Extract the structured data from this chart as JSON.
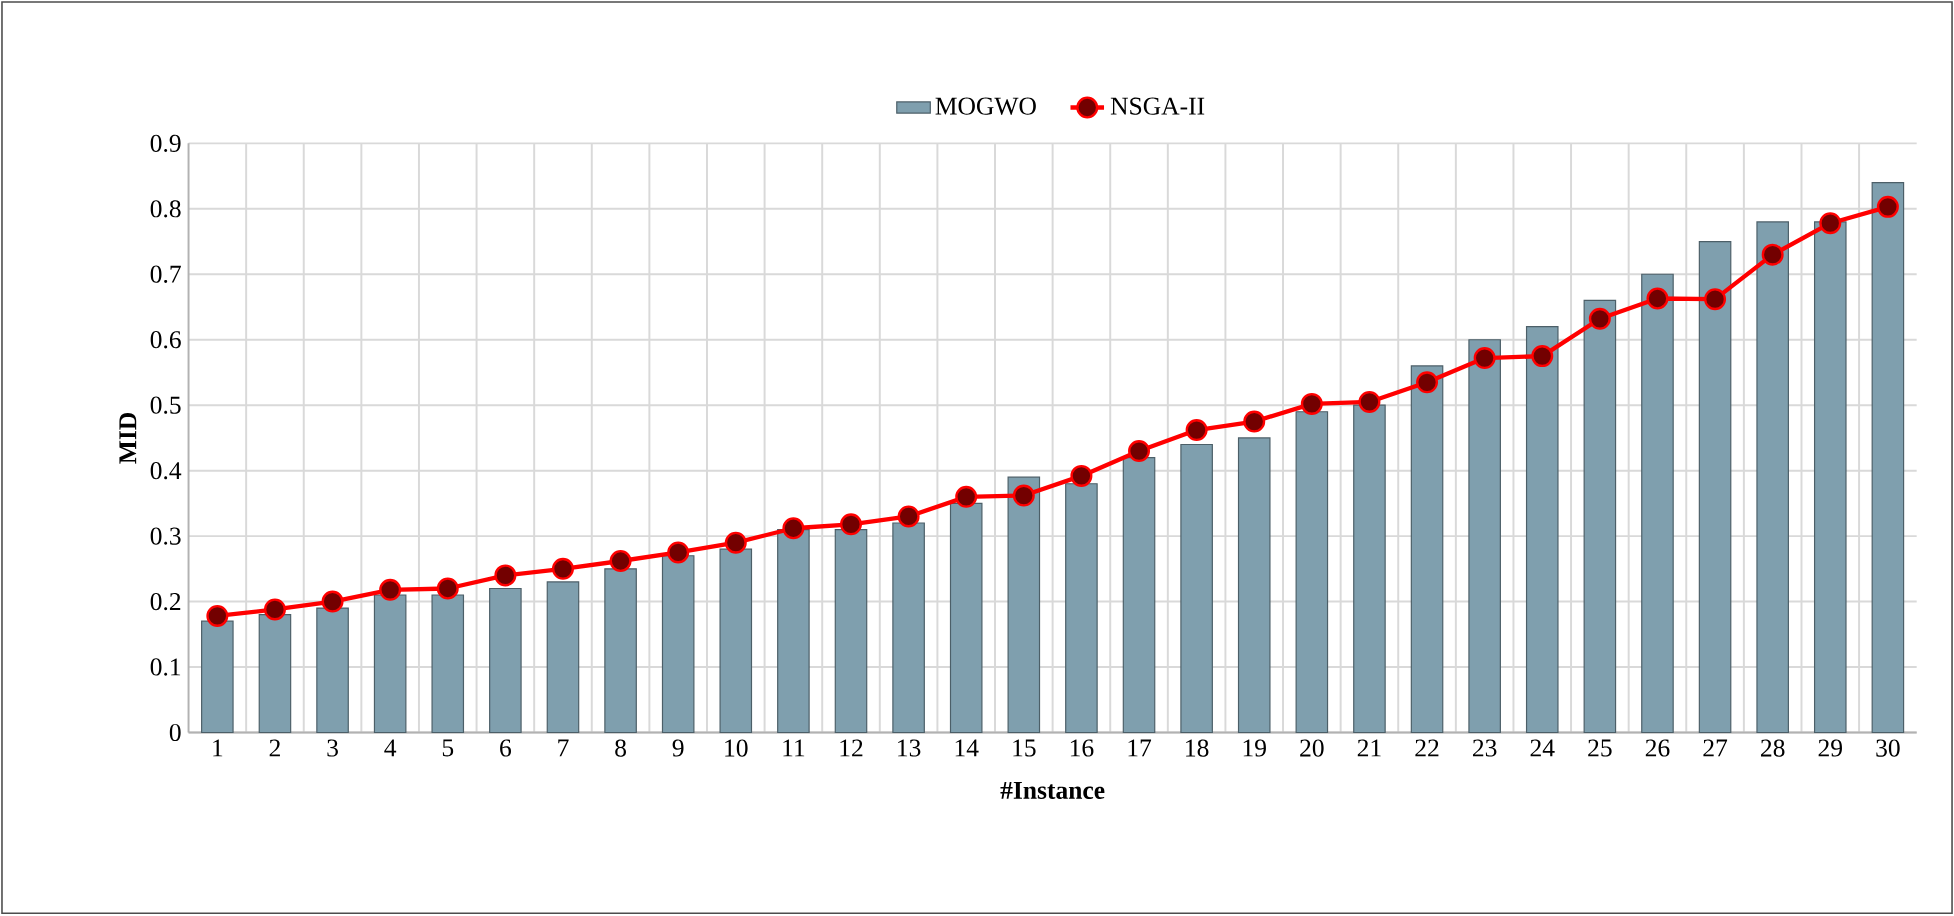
{
  "chart_data": {
    "type": "bar",
    "xlabel": "#Instance",
    "ylabel": "MID",
    "categories": [
      "1",
      "2",
      "3",
      "4",
      "5",
      "6",
      "7",
      "8",
      "9",
      "10",
      "11",
      "12",
      "13",
      "14",
      "15",
      "16",
      "17",
      "18",
      "19",
      "20",
      "21",
      "22",
      "23",
      "24",
      "25",
      "26",
      "27",
      "28",
      "29",
      "30"
    ],
    "series": [
      {
        "name": "MOGWO",
        "color": "#7f9fae",
        "values": [
          0.17,
          0.18,
          0.19,
          0.21,
          0.21,
          0.22,
          0.23,
          0.25,
          0.27,
          0.28,
          0.31,
          0.31,
          0.32,
          0.35,
          0.39,
          0.38,
          0.42,
          0.44,
          0.45,
          0.49,
          0.5,
          0.56,
          0.6,
          0.62,
          0.66,
          0.7,
          0.75,
          0.78,
          0.78,
          0.84
        ]
      },
      {
        "name": "NSGA-II",
        "type": "line",
        "color": "#ff0000",
        "marker": "circle",
        "values": [
          0.178,
          0.188,
          0.2,
          0.218,
          0.22,
          0.24,
          0.25,
          0.262,
          0.275,
          0.29,
          0.312,
          0.318,
          0.33,
          0.36,
          0.362,
          0.392,
          0.43,
          0.462,
          0.475,
          0.502,
          0.505,
          0.535,
          0.572,
          0.575,
          0.632,
          0.663,
          0.662,
          0.73,
          0.778,
          0.803
        ]
      }
    ],
    "ylim": [
      0,
      0.9
    ],
    "yticks": [
      0,
      0.1,
      0.2,
      0.3,
      0.4,
      0.5,
      0.6,
      0.7,
      0.8,
      0.9
    ],
    "grid": true,
    "legend": "top"
  }
}
